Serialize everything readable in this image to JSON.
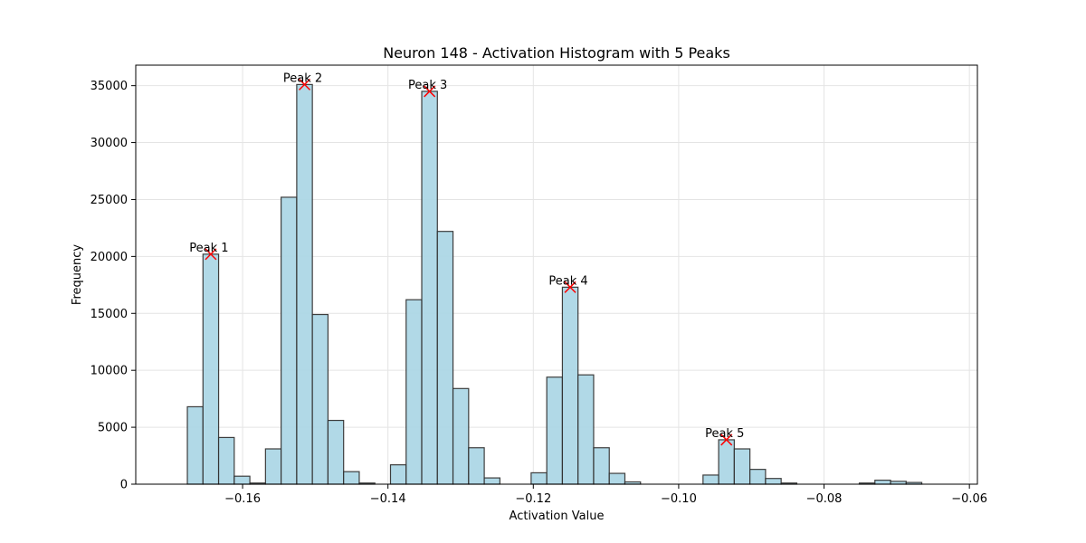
{
  "chart_data": {
    "type": "bar",
    "title": "Neuron 148 - Activation Histogram with 5 Peaks",
    "xlabel": "Activation Value",
    "ylabel": "Frequency",
    "xlim": [
      -0.1747,
      -0.0589
    ],
    "ylim": [
      0,
      36800
    ],
    "x_ticks": [
      -0.16,
      -0.14,
      -0.12,
      -0.1,
      -0.08,
      -0.06
    ],
    "x_tick_labels": [
      "−0.16",
      "−0.14",
      "−0.12",
      "−0.10",
      "−0.08",
      "−0.06"
    ],
    "y_ticks": [
      0,
      5000,
      10000,
      15000,
      20000,
      25000,
      30000,
      35000
    ],
    "y_tick_labels": [
      "0",
      "5000",
      "10000",
      "15000",
      "20000",
      "25000",
      "30000",
      "35000"
    ],
    "grid": true,
    "bin_start": -0.1676,
    "bin_width": 0.00215,
    "values": [
      6800,
      20200,
      4100,
      700,
      100,
      3100,
      25200,
      35100,
      14900,
      5600,
      1100,
      100,
      0,
      1700,
      16200,
      34500,
      22200,
      8400,
      3200,
      550,
      0,
      0,
      1000,
      9400,
      17300,
      9600,
      3200,
      950,
      200,
      0,
      0,
      0,
      0,
      800,
      3900,
      3100,
      1300,
      500,
      100,
      0,
      0,
      0,
      0,
      100,
      350,
      250,
      150
    ],
    "peaks": [
      {
        "label": "Peak 1",
        "bin": 1
      },
      {
        "label": "Peak 2",
        "bin": 7
      },
      {
        "label": "Peak 3",
        "bin": 15
      },
      {
        "label": "Peak 4",
        "bin": 24
      },
      {
        "label": "Peak 5",
        "bin": 34
      }
    ],
    "colors": {
      "bar_fill": "#add8e6",
      "bar_edge": "#333333",
      "peak_marker": "#ff0000"
    }
  }
}
